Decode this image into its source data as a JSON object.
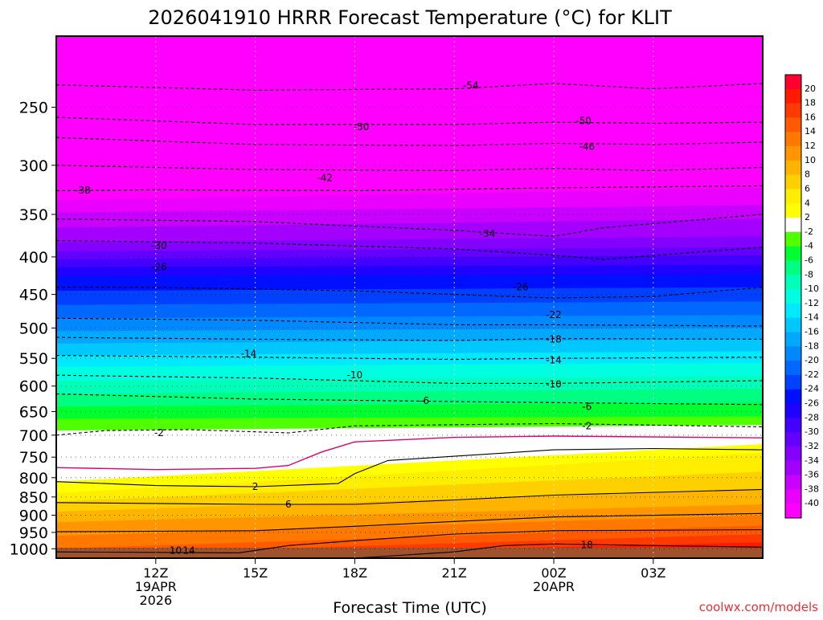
{
  "chart_data": {
    "type": "heatmap",
    "title": "2026041910 HRRR Forecast Temperature (°C) for KLIT",
    "xlabel": "Forecast Time (UTC)",
    "ylabel": "",
    "credit": "coolwx.com/models",
    "x_hours_from_12Z": [
      -3,
      18.3
    ],
    "y_pressure_range_hPa": [
      1030,
      200
    ],
    "y_ticks": [
      250,
      300,
      350,
      400,
      450,
      500,
      550,
      600,
      650,
      700,
      750,
      800,
      850,
      900,
      950,
      1000
    ],
    "x_ticks": [
      {
        "h": 0,
        "label": "12Z",
        "sub1": "19APR",
        "sub2": "2026"
      },
      {
        "h": 3,
        "label": "15Z",
        "sub1": "",
        "sub2": ""
      },
      {
        "h": 6,
        "label": "18Z",
        "sub1": "",
        "sub2": ""
      },
      {
        "h": 9,
        "label": "21Z",
        "sub1": "",
        "sub2": ""
      },
      {
        "h": 12,
        "label": "00Z",
        "sub1": "20APR",
        "sub2": ""
      },
      {
        "h": 15,
        "label": "03Z",
        "sub1": "",
        "sub2": ""
      }
    ],
    "colorbar": [
      {
        "label": "20",
        "color": "#ff0030"
      },
      {
        "label": "18",
        "color": "#ff1a00"
      },
      {
        "label": "16",
        "color": "#ff3a00"
      },
      {
        "label": "14",
        "color": "#ff5a00"
      },
      {
        "label": "12",
        "color": "#ff7800"
      },
      {
        "label": "10",
        "color": "#ff9600"
      },
      {
        "label": "8",
        "color": "#ffb400"
      },
      {
        "label": "6",
        "color": "#ffd000"
      },
      {
        "label": "4",
        "color": "#ffee00"
      },
      {
        "label": "2",
        "color": "#ffff00"
      },
      {
        "label": "-2",
        "color": "#ffffff"
      },
      {
        "label": "-4",
        "color": "#50ff00"
      },
      {
        "label": "-6",
        "color": "#00ff30"
      },
      {
        "label": "-8",
        "color": "#00ff80"
      },
      {
        "label": "-10",
        "color": "#00ffb8"
      },
      {
        "label": "-12",
        "color": "#00ffe0"
      },
      {
        "label": "-14",
        "color": "#00eaff"
      },
      {
        "label": "-16",
        "color": "#00c8ff"
      },
      {
        "label": "-18",
        "color": "#00a8ff"
      },
      {
        "label": "-20",
        "color": "#0088ff"
      },
      {
        "label": "-22",
        "color": "#0068ff"
      },
      {
        "label": "-24",
        "color": "#0040ff"
      },
      {
        "label": "-26",
        "color": "#0010ff"
      },
      {
        "label": "-28",
        "color": "#2000ff"
      },
      {
        "label": "-30",
        "color": "#4400ff"
      },
      {
        "label": "-32",
        "color": "#6400ff"
      },
      {
        "label": "-34",
        "color": "#8400ff"
      },
      {
        "label": "-36",
        "color": "#a400ff"
      },
      {
        "label": "-38",
        "color": "#c800ff"
      },
      {
        "label": "-40",
        "color": "#ea00ff"
      },
      {
        "label": "",
        "color": "#ff00ff"
      }
    ],
    "ground_color": "#a0522d",
    "bands": [
      {
        "color": "#ff00ff",
        "p": [
          200,
          200
        ]
      },
      {
        "color": "#ea00ff",
        "p": [
          335,
          322
        ]
      },
      {
        "color": "#c800ff",
        "p": [
          348,
          340
        ]
      },
      {
        "color": "#a400ff",
        "p": [
          365,
          355
        ]
      },
      {
        "color": "#8400ff",
        "p": [
          382,
          375
        ]
      },
      {
        "color": "#6400ff",
        "p": [
          393,
          388
        ]
      },
      {
        "color": "#4400ff",
        "p": [
          403,
          398
        ]
      },
      {
        "color": "#2000ff",
        "p": [
          413,
          410
        ]
      },
      {
        "color": "#0010ff",
        "p": [
          425,
          422
        ]
      },
      {
        "color": "#0040ff",
        "p": [
          445,
          440
        ]
      },
      {
        "color": "#0068ff",
        "p": [
          465,
          460
        ]
      },
      {
        "color": "#0088ff",
        "p": [
          485,
          480
        ]
      },
      {
        "color": "#00a8ff",
        "p": [
          505,
          500
        ]
      },
      {
        "color": "#00c8ff",
        "p": [
          525,
          518
        ]
      },
      {
        "color": "#00eaff",
        "p": [
          545,
          538
        ]
      },
      {
        "color": "#00ffe0",
        "p": [
          565,
          558
        ]
      },
      {
        "color": "#00ffb8",
        "p": [
          590,
          582
        ]
      },
      {
        "color": "#00ff80",
        "p": [
          615,
          605
        ]
      },
      {
        "color": "#00ff30",
        "p": [
          640,
          632
        ]
      },
      {
        "color": "#50ff00",
        "p": [
          665,
          660
        ]
      },
      {
        "color": "#ffffff",
        "p": [
          690,
          678
        ]
      },
      {
        "color": "#ffff00",
        "p": [
          810,
          720
        ]
      },
      {
        "color": "#ffee00",
        "p": [
          840,
          740
        ]
      },
      {
        "color": "#ffd000",
        "p": [
          862,
          785
        ]
      },
      {
        "color": "#ffb400",
        "p": [
          890,
          830
        ]
      },
      {
        "color": "#ff9600",
        "p": [
          920,
          870
        ]
      },
      {
        "color": "#ff7800",
        "p": [
          960,
          900
        ]
      },
      {
        "color": "#ff5a00",
        "p": [
          1000,
          930
        ]
      },
      {
        "color": "#ff3a00",
        "p": [
          1020,
          955
        ]
      },
      {
        "color": "#ff1a00",
        "p": [
          1030,
          980
        ]
      }
    ],
    "contours": [
      {
        "label": "-54",
        "dashed": true,
        "color": "#000000",
        "pts": [
          [
            -3,
            233
          ],
          [
            3,
            237
          ],
          [
            9,
            236
          ],
          [
            12,
            232
          ],
          [
            15,
            236
          ],
          [
            18.3,
            232
          ]
        ],
        "labels": [
          [
            9.5,
            233.5
          ]
        ]
      },
      {
        "label": "-50",
        "dashed": true,
        "color": "#000000",
        "pts": [
          [
            -3,
            258
          ],
          [
            3,
            264
          ],
          [
            9,
            264
          ],
          [
            12,
            262
          ],
          [
            15,
            263
          ],
          [
            18.3,
            262
          ]
        ],
        "labels": [
          [
            6.2,
            266
          ],
          [
            12.9,
            261
          ]
        ]
      },
      {
        "label": "-46",
        "dashed": true,
        "color": "#000000",
        "pts": [
          [
            -3,
            275
          ],
          [
            3,
            281
          ],
          [
            9,
            282
          ],
          [
            12,
            280
          ],
          [
            15,
            281
          ],
          [
            18.3,
            279
          ]
        ],
        "labels": [
          [
            13,
            283
          ]
        ]
      },
      {
        "label": "-42",
        "dashed": true,
        "color": "#000000",
        "pts": [
          [
            -3,
            300
          ],
          [
            3,
            304
          ],
          [
            9,
            305
          ],
          [
            12,
            303
          ],
          [
            15,
            305
          ],
          [
            18.3,
            302
          ]
        ],
        "labels": [
          [
            5.1,
            312
          ]
        ]
      },
      {
        "label": "-38",
        "dashed": true,
        "color": "#000000",
        "pts": [
          [
            -3,
            325
          ],
          [
            0,
            324
          ],
          [
            6,
            325
          ],
          [
            12,
            322
          ],
          [
            18.3,
            320
          ]
        ],
        "labels": [
          [
            -2.2,
            324.5
          ]
        ]
      },
      {
        "label": "-34",
        "dashed": true,
        "color": "#000000",
        "pts": [
          [
            -3,
            355
          ],
          [
            3,
            358
          ],
          [
            9,
            368
          ],
          [
            12,
            375
          ],
          [
            13.5,
            365
          ],
          [
            18.3,
            350
          ]
        ],
        "labels": [
          [
            10,
            372
          ]
        ]
      },
      {
        "label": "-30",
        "dashed": true,
        "color": "#000000",
        "pts": [
          [
            -3,
            380
          ],
          [
            3,
            383
          ],
          [
            9,
            390
          ],
          [
            12,
            398
          ],
          [
            13.5,
            403
          ],
          [
            18.3,
            388
          ]
        ],
        "labels": [
          [
            0.1,
            386
          ]
        ]
      },
      {
        "label": "-26",
        "dashed": true,
        "color": "#000000",
        "pts": [
          [
            -3,
            440
          ],
          [
            0,
            440
          ],
          [
            6,
            445
          ],
          [
            12,
            455
          ],
          [
            15,
            453
          ],
          [
            18.3,
            440
          ]
        ],
        "labels": [
          [
            0.1,
            413
          ],
          [
            11,
            440
          ]
        ]
      },
      {
        "label": "-22",
        "dashed": true,
        "color": "#000000",
        "pts": [
          [
            -3,
            485
          ],
          [
            3,
            488
          ],
          [
            9,
            495
          ],
          [
            12,
            495
          ],
          [
            18.3,
            497
          ]
        ],
        "labels": [
          [
            12,
            480
          ]
        ]
      },
      {
        "label": "-18",
        "dashed": true,
        "color": "#000000",
        "pts": [
          [
            -3,
            515
          ],
          [
            3,
            518
          ],
          [
            9,
            520
          ],
          [
            12,
            517
          ],
          [
            18.3,
            518
          ]
        ],
        "labels": [
          [
            12,
            518
          ]
        ]
      },
      {
        "label": "-14",
        "dashed": true,
        "color": "#000000",
        "pts": [
          [
            -3,
            545
          ],
          [
            3,
            548
          ],
          [
            9,
            552
          ],
          [
            12,
            550
          ],
          [
            18.3,
            548
          ]
        ],
        "labels": [
          [
            2.8,
            542
          ],
          [
            12,
            553
          ]
        ]
      },
      {
        "label": "-10",
        "dashed": true,
        "color": "#000000",
        "pts": [
          [
            -3,
            580
          ],
          [
            3,
            585
          ],
          [
            9,
            595
          ],
          [
            12,
            595
          ],
          [
            18.3,
            590
          ]
        ],
        "labels": [
          [
            6,
            580
          ],
          [
            12,
            597
          ]
        ]
      },
      {
        "label": "-6",
        "dashed": true,
        "color": "#000000",
        "pts": [
          [
            -3,
            615
          ],
          [
            3,
            625
          ],
          [
            9,
            630
          ],
          [
            12,
            632
          ],
          [
            18.3,
            636
          ]
        ],
        "labels": [
          [
            8.1,
            628
          ],
          [
            13,
            640
          ]
        ]
      },
      {
        "label": "-2",
        "dashed": true,
        "color": "#000000",
        "pts": [
          [
            -3,
            700
          ],
          [
            -1.5,
            690
          ],
          [
            1,
            688
          ],
          [
            4,
            695
          ],
          [
            6,
            680
          ],
          [
            12,
            675
          ],
          [
            18.3,
            682
          ]
        ],
        "labels": [
          [
            0.1,
            695
          ],
          [
            13,
            680
          ]
        ]
      },
      {
        "label": "0",
        "dashed": false,
        "color": "#e0006e",
        "pts": [
          [
            -3,
            775
          ],
          [
            0,
            780
          ],
          [
            3,
            777
          ],
          [
            4,
            770
          ],
          [
            5,
            738
          ],
          [
            6,
            715
          ],
          [
            9,
            705
          ],
          [
            12,
            702
          ],
          [
            18.3,
            706
          ]
        ],
        "labels": []
      },
      {
        "label": "2",
        "dashed": false,
        "color": "#000000",
        "pts": [
          [
            -3,
            810
          ],
          [
            0,
            820
          ],
          [
            3,
            823
          ],
          [
            5.5,
            815
          ],
          [
            6,
            790
          ],
          [
            7,
            758
          ],
          [
            9,
            748
          ],
          [
            12,
            733
          ],
          [
            15,
            730
          ],
          [
            18.3,
            733
          ]
        ],
        "labels": [
          [
            3,
            823
          ]
        ]
      },
      {
        "label": "6",
        "dashed": false,
        "color": "#000000",
        "pts": [
          [
            -3,
            865
          ],
          [
            3,
            870
          ],
          [
            6,
            870
          ],
          [
            9,
            858
          ],
          [
            12,
            845
          ],
          [
            18.3,
            830
          ]
        ],
        "labels": [
          [
            4,
            870
          ]
        ]
      },
      {
        "label": "10",
        "dashed": false,
        "color": "#000000",
        "pts": [
          [
            -3,
            948
          ],
          [
            3,
            945
          ],
          [
            6,
            932
          ],
          [
            9,
            918
          ],
          [
            12,
            905
          ],
          [
            18.3,
            895
          ]
        ],
        "labels": []
      },
      {
        "label": "14",
        "dashed": false,
        "color": "#000000",
        "pts": [
          [
            -3,
            1010
          ],
          [
            2.5,
            1013
          ],
          [
            4,
            990
          ],
          [
            6,
            975
          ],
          [
            9,
            955
          ],
          [
            12,
            945
          ],
          [
            18.3,
            942
          ]
        ],
        "labels": [
          [
            1,
            1005
          ]
        ]
      },
      {
        "label": "18",
        "dashed": false,
        "color": "#000000",
        "pts": [
          [
            6,
            1030
          ],
          [
            9,
            1010
          ],
          [
            10.5,
            990
          ],
          [
            12,
            985
          ],
          [
            15,
            990
          ],
          [
            18.3,
            995
          ]
        ],
        "labels": [
          [
            13,
            988
          ]
        ]
      }
    ],
    "annotation_label_10": "10",
    "annotation_label_18": "18"
  }
}
